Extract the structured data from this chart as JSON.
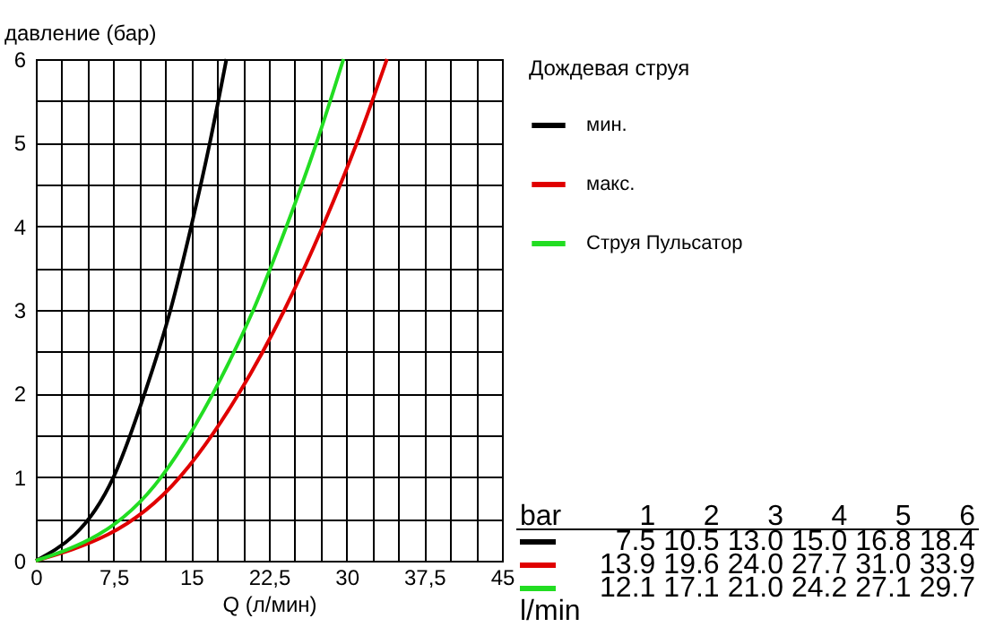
{
  "chart_data": {
    "type": "line",
    "xlabel": "Q (л/мин)",
    "ylabel": "давление (бар)",
    "legend_title": "Дождевая струя",
    "series": [
      {
        "name": "мин.",
        "color": "#000000",
        "x": [
          0,
          7.5,
          10.5,
          13.0,
          15.0,
          16.8,
          18.4
        ],
        "values": [
          0,
          1,
          2,
          3,
          4,
          5,
          6
        ]
      },
      {
        "name": "макс.",
        "color": "#e00000",
        "x": [
          0,
          13.9,
          19.6,
          24.0,
          27.7,
          31.0,
          33.9
        ],
        "values": [
          0,
          1,
          2,
          3,
          4,
          5,
          6
        ]
      },
      {
        "name": "Струя Пульсатор",
        "color": "#22dd22",
        "x": [
          0,
          12.1,
          17.1,
          21.0,
          24.2,
          27.1,
          29.7
        ],
        "values": [
          0,
          1,
          2,
          3,
          4,
          5,
          6
        ]
      }
    ],
    "annotations": [
      "bar",
      "1",
      "2",
      "3",
      "4",
      "5",
      "6",
      "7.5",
      "10.5",
      "13.0",
      "15.0",
      "16.8",
      "18.4",
      "13.9",
      "19.6",
      "24.0",
      "27.7",
      "31.0",
      "33.9",
      "12.1",
      "17.1",
      "21.0",
      "24.2",
      "27.1",
      "29.7",
      "l/min"
    ],
    "xlim": [
      0,
      45
    ],
    "xticks": [
      0,
      {
        "value": 2.5,
        "label": null
      },
      {
        "value": 5,
        "label": null
      },
      {
        "value": 7.5,
        "label": "7,5"
      },
      {
        "value": 10,
        "label": null
      },
      {
        "value": 12.5,
        "label": null
      },
      15,
      {
        "value": 17.5,
        "label": null
      },
      {
        "value": 20,
        "label": null
      },
      {
        "value": 22.5,
        "label": "22,5"
      },
      {
        "value": 25,
        "label": null
      },
      {
        "value": 27.5,
        "label": null
      },
      30,
      {
        "value": 32.5,
        "label": null
      },
      {
        "value": 35,
        "label": null
      },
      {
        "value": 37.5,
        "label": "37,5"
      },
      {
        "value": 40,
        "label": null
      },
      {
        "value": 42.5,
        "label": null
      },
      45
    ],
    "ylim": [
      0,
      6
    ],
    "yticks": [
      0,
      {
        "value": 0.5,
        "label": null
      },
      1,
      {
        "value": 1.5,
        "label": null
      },
      2,
      {
        "value": 2.5,
        "label": null
      },
      3,
      {
        "value": 3.5,
        "label": null
      },
      4,
      {
        "value": 4.5,
        "label": null
      },
      5,
      {
        "value": 5.5,
        "label": null
      },
      6
    ],
    "grid": true,
    "legend": "top right",
    "line_style": "solid",
    "marker": "none"
  }
}
